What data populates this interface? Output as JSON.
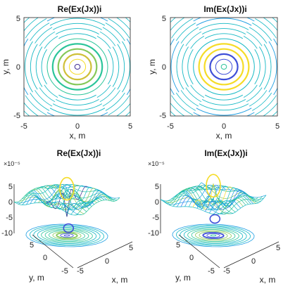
{
  "chart_data": [
    {
      "type": "contour",
      "title": "Re(Ex(Jx))i",
      "xlabel": "x, m",
      "ylabel": "y, m",
      "xlim": [
        -5,
        5
      ],
      "ylim": [
        -5,
        5
      ],
      "xticks": [
        "-5",
        "0",
        "5"
      ],
      "yticks": [
        "5",
        "0",
        "-5"
      ],
      "levels": 14,
      "grid": false
    },
    {
      "type": "contour",
      "title": "Im(Ex(Jx))i",
      "xlabel": "x, m",
      "ylabel": "y, m",
      "xlim": [
        -5,
        5
      ],
      "ylim": [
        -5,
        5
      ],
      "xticks": [
        "-5",
        "0",
        "5"
      ],
      "yticks": [
        "5",
        "0",
        "-5"
      ],
      "levels": 14,
      "grid": false
    },
    {
      "type": "surface",
      "title": "Re(Ex(Jx))i",
      "xlabel": "x, m",
      "ylabel": "y, m",
      "z_exponent": "×10⁻⁵",
      "zticks": [
        "5",
        "0",
        "-5",
        "-10"
      ],
      "xticks": [
        "-5",
        "0",
        "5"
      ],
      "yticks": [
        "-5",
        "0",
        "5"
      ],
      "zlim": [
        -10,
        5
      ]
    },
    {
      "type": "surface",
      "title": "Im(Ex(Jx))i",
      "xlabel": "x, m",
      "ylabel": "y, m",
      "z_exponent": "×10⁻⁵",
      "zticks": [
        "5",
        "0",
        "-5",
        "-10"
      ],
      "xticks": [
        "-5",
        "0",
        "5"
      ],
      "yticks": [
        "-5",
        "0",
        "5"
      ],
      "zlim": [
        -10,
        5
      ]
    }
  ]
}
